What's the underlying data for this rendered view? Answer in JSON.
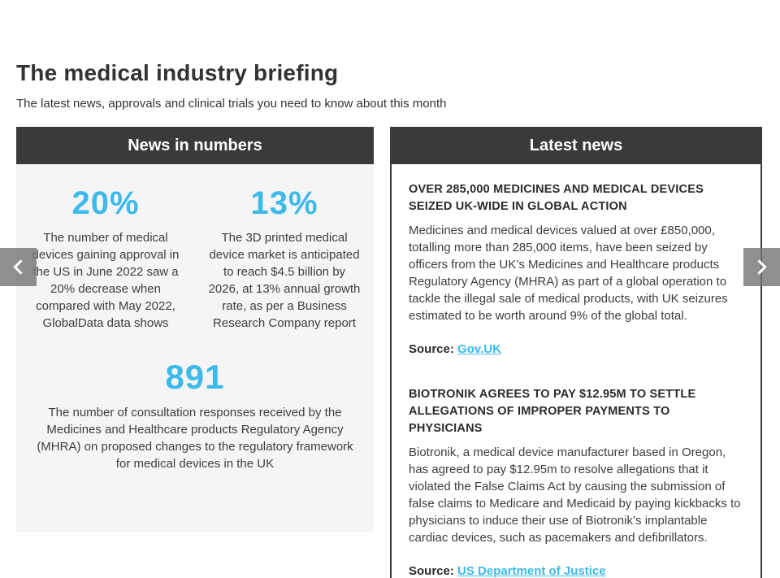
{
  "page": {
    "title": "The medical industry briefing",
    "subtitle": "The latest news, approvals and clinical trials you need to know about this month"
  },
  "colors": {
    "accent_blue": "#3db9ea",
    "header_dark": "#3a3a3c",
    "panel_gray": "#f5f5f5"
  },
  "news_in_numbers": {
    "header": "News in numbers",
    "stats": [
      {
        "value": "20%",
        "description": "The number of medical devices gaining approval in the US in June 2022 saw a 20% decrease when compared with May 2022, GlobalData data shows"
      },
      {
        "value": "13%",
        "description": "The 3D printed medical device market is anticipated to reach $4.5 billion by 2026, at 13% annual growth rate, as per a Business Research Company report"
      },
      {
        "value": "891",
        "description": "The number of consultation responses received by the Medicines and Healthcare products Regulatory Agency (MHRA) on proposed changes to the regulatory framework for medical devices in the UK"
      }
    ]
  },
  "latest_news": {
    "header": "Latest news",
    "articles": [
      {
        "headline": "OVER 285,000 MEDICINES AND MEDICAL DEVICES SEIZED UK-WIDE IN GLOBAL ACTION",
        "body": "Medicines and medical devices valued at over £850,000, totalling more than 285,000 items, have been seized by officers from the UK’s Medicines and Healthcare products Regulatory Agency (MHRA) as part of a global operation to tackle the illegal sale of medical products, with UK seizures estimated to be worth around 9% of the global total.",
        "source_label": "Source:",
        "source_link": "Gov.UK"
      },
      {
        "headline": "BIOTRONIK AGREES TO PAY $12.95M TO SETTLE ALLEGATIONS OF IMPROPER PAYMENTS TO PHYSICIANS",
        "body": "Biotronik, a medical device manufacturer based in Oregon, has agreed to pay $12.95m to resolve allegations that it violated the False Claims Act by causing the submission of false claims to Medicare and Medicaid by paying kickbacks to physicians to induce their use of Biotronik’s implantable cardiac devices, such as pacemakers and defibrillators.",
        "source_label": "Source:",
        "source_link": "US Department of Justice"
      }
    ]
  }
}
